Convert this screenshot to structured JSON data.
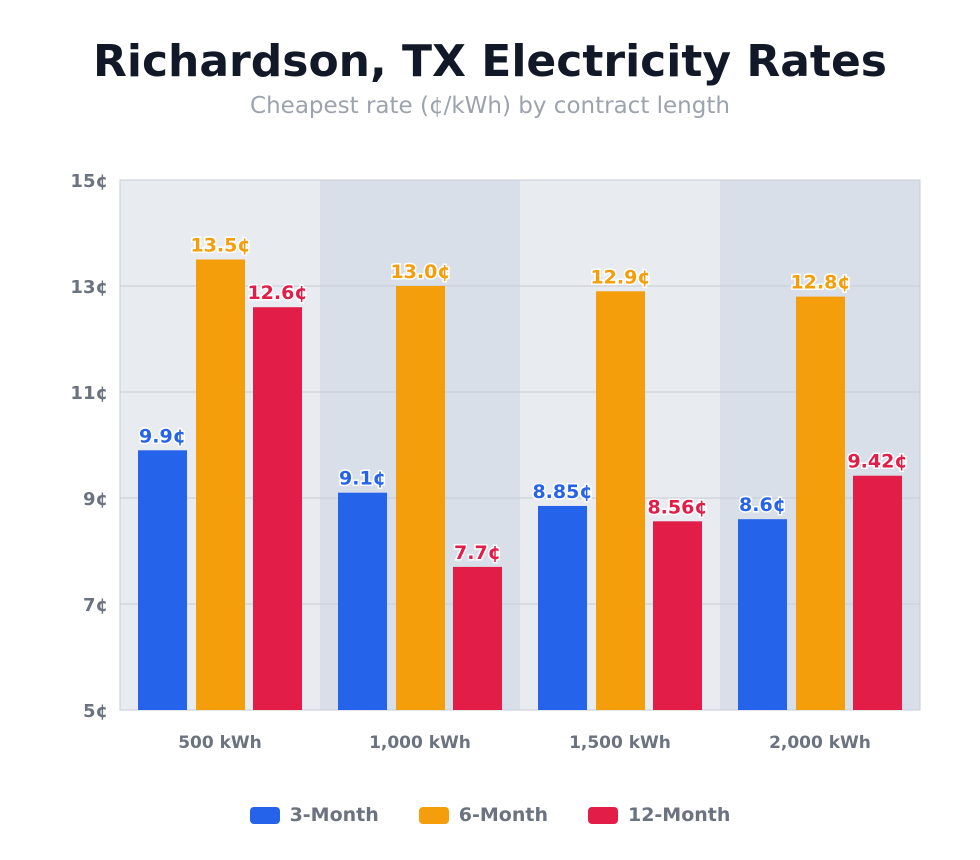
{
  "chart_data": {
    "type": "bar",
    "title": "Richardson, TX Electricity Rates",
    "subtitle": "Cheapest rate (¢/kWh) by contract length",
    "categories": [
      "500 kWh",
      "1,000 kWh",
      "1,500 kWh",
      "2,000 kWh"
    ],
    "series": [
      {
        "name": "3-Month",
        "color": "#2563eb",
        "values": [
          9.9,
          9.1,
          8.85,
          8.6
        ],
        "labels": [
          "9.9¢",
          "9.1¢",
          "8.85¢",
          "8.6¢"
        ]
      },
      {
        "name": "6-Month",
        "color": "#f59e0b",
        "values": [
          13.5,
          13.0,
          12.9,
          12.8
        ],
        "labels": [
          "13.5¢",
          "13.0¢",
          "12.9¢",
          "12.8¢"
        ]
      },
      {
        "name": "12-Month",
        "color": "#e11d48",
        "values": [
          12.6,
          7.7,
          8.56,
          9.42
        ],
        "labels": [
          "12.6¢",
          "7.7¢",
          "8.56¢",
          "9.42¢"
        ]
      }
    ],
    "ylim": [
      5,
      15
    ],
    "yticks": [
      5,
      7,
      9,
      11,
      13,
      15
    ],
    "ytick_labels": [
      "5¢",
      "7¢",
      "9¢",
      "11¢",
      "13¢",
      "15¢"
    ],
    "grid": true,
    "legend": "bottom",
    "band_colors": [
      "#e8ebf0",
      "#d9dfe8"
    ]
  }
}
